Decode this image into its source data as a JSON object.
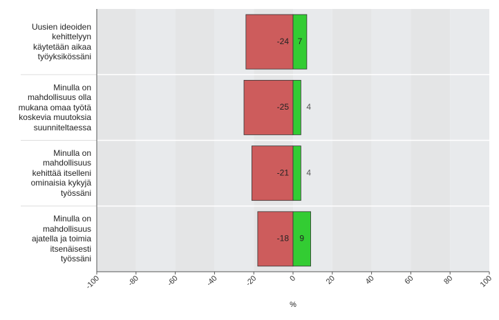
{
  "chart_data": {
    "type": "bar",
    "orientation": "horizontal",
    "stacked": true,
    "categories": [
      "Uusien ideoiden kehittelyyn käytetään aikaa työyksikössäni",
      "Minulla on mahdollisuus olla mukana omaa työtä koskevia muutoksia suunniteltaessa",
      "Minulla on mahdollisuus kehittää itselleni ominaisia kykyjä työssäni",
      "Minulla on mahdollisuus ajatella ja toimia itsenäisesti työssäni"
    ],
    "category_lines": [
      [
        "Uusien ideoiden",
        "kehittelyyn",
        "käytetään aikaa",
        "työyksikössäni"
      ],
      [
        "Minulla on",
        "mahdollisuus olla",
        "mukana omaa työtä",
        "koskevia muutoksia",
        "suunniteltaessa"
      ],
      [
        "Minulla on",
        "mahdollisuus",
        "kehittää itselleni",
        "ominaisia kykyjä",
        "työssäni"
      ],
      [
        "Minulla on",
        "mahdollisuus",
        "ajatella ja toimia",
        "itsenäisesti",
        "työssäni"
      ]
    ],
    "series": [
      {
        "values": [
          -24,
          -25,
          -21,
          -18
        ],
        "color": "#cd5c5c"
      },
      {
        "values": [
          7,
          4,
          4,
          9
        ],
        "color": "#33cc33"
      }
    ],
    "xlabel": "%",
    "ylabel": "",
    "xlim": [
      -100,
      100
    ],
    "xticks": [
      -100,
      -80,
      -60,
      -40,
      -20,
      0,
      20,
      40,
      60,
      80,
      100
    ],
    "xtick_labels": [
      "-100",
      "-80",
      "-60",
      "-40",
      "-20",
      "0",
      "20",
      "40",
      "60",
      "80",
      "100"
    ],
    "grid": "alternating vertical bands",
    "legend": "none"
  }
}
